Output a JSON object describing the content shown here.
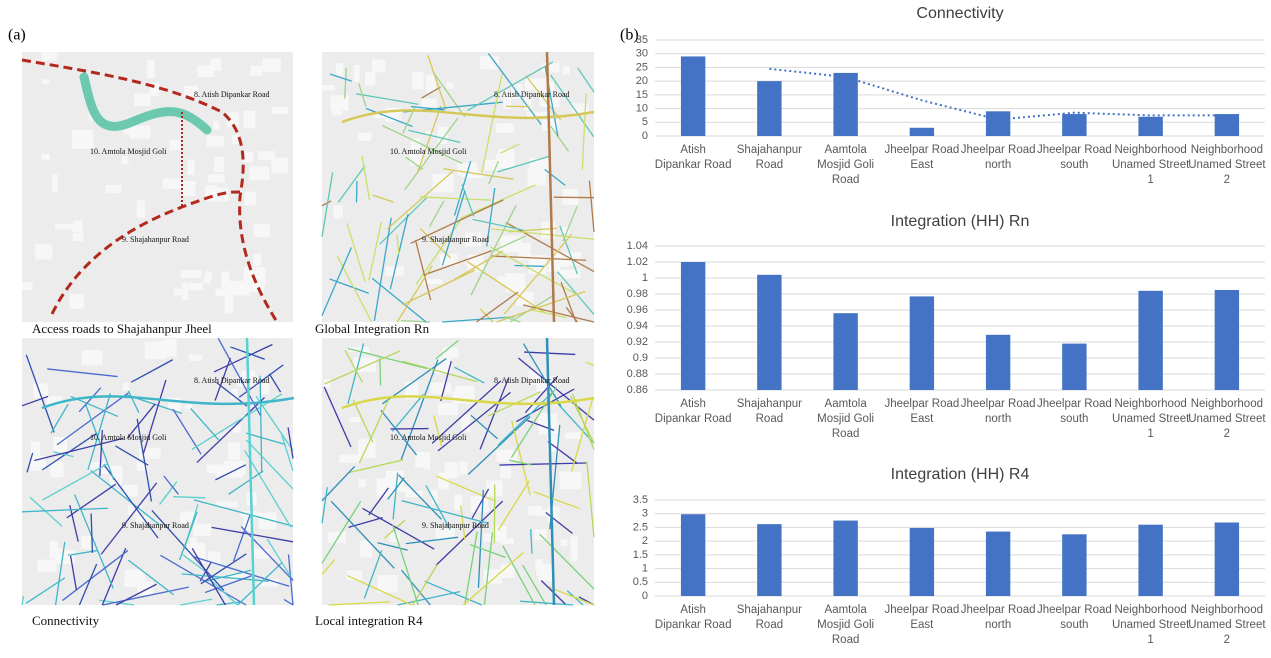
{
  "panel_labels": [
    "(a)",
    "(b)"
  ],
  "maps": [
    {
      "caption": "Access roads to Shajahanpur Jheel",
      "labels": [
        "8. Atish Dipankar Road",
        "10. Amtola Mosjid Goli",
        "9. Shajahanpur Road"
      ]
    },
    {
      "caption": "Global Integration Rn",
      "labels": [
        "8. Atish Dipankar Road",
        "10. Amtola Mosjid Goli",
        "9. Shajahanpur Road"
      ]
    },
    {
      "caption": "Connectivity",
      "labels": [
        "8. Atish Dipankar Road",
        "10. Amtola Mosjid Goli",
        "9. Shajahanpur Road"
      ]
    },
    {
      "caption": "Local integration R4",
      "labels": [
        "8. Atish Dipankar Road",
        "10. Amtola Mosjid Goli",
        "9. Shajahanpur Road"
      ]
    }
  ],
  "chart_data": [
    {
      "type": "bar",
      "title": "Connectivity",
      "categories": [
        "Atish Dipankar Road",
        "Shajahanpur Road",
        "Aamtola Mosjid Goli Road",
        "Jheelpar Road East",
        "Jheelpar Road north",
        "Jheelpar Road south",
        "Neighborhood Unamed Street 1",
        "Neighborhood Unamed Street 2"
      ],
      "values": [
        29,
        20,
        23,
        3,
        9,
        8,
        7,
        8
      ],
      "trend_values": [
        null,
        24.5,
        21.5,
        13,
        6,
        8.5,
        7.5,
        7.5
      ],
      "color": "#4472c4",
      "ylim": [
        0,
        35
      ],
      "yticks": [
        0,
        5,
        10,
        15,
        20,
        25,
        30,
        35
      ],
      "grid": true
    },
    {
      "type": "bar",
      "title": "Integration (HH) Rn",
      "categories": [
        "Atish Dipankar Road",
        "Shajahanpur Road",
        "Aamtola Mosjid Goli Road",
        "Jheelpar Road East",
        "Jheelpar Road north",
        "Jheelpar Road south",
        "Neighborhood Unamed Street 1",
        "Neighborhood Unamed Street 2"
      ],
      "values": [
        1.02,
        1.004,
        0.956,
        0.977,
        0.929,
        0.918,
        0.984,
        0.985
      ],
      "color": "#4472c4",
      "ylim": [
        0.86,
        1.04
      ],
      "yticks": [
        0.86,
        0.88,
        0.9,
        0.92,
        0.94,
        0.96,
        0.98,
        1,
        1.02,
        1.04
      ],
      "grid": true
    },
    {
      "type": "bar",
      "title": "Integration (HH) R4",
      "categories": [
        "Atish Dipankar Road",
        "Shajahanpur Road",
        "Aamtola Mosjid Goli Road",
        "Jheelpar Road East",
        "Jheelpar Road north",
        "Jheelpar Road south",
        "Neighborhood Unamed Street 1",
        "Neighborhood Unamed Street 2"
      ],
      "values": [
        2.98,
        2.62,
        2.75,
        2.48,
        2.35,
        2.25,
        2.6,
        2.68
      ],
      "color": "#4472c4",
      "ylim": [
        0,
        3.5
      ],
      "yticks": [
        0,
        0.5,
        1,
        1.5,
        2,
        2.5,
        3,
        3.5
      ],
      "grid": true
    }
  ]
}
